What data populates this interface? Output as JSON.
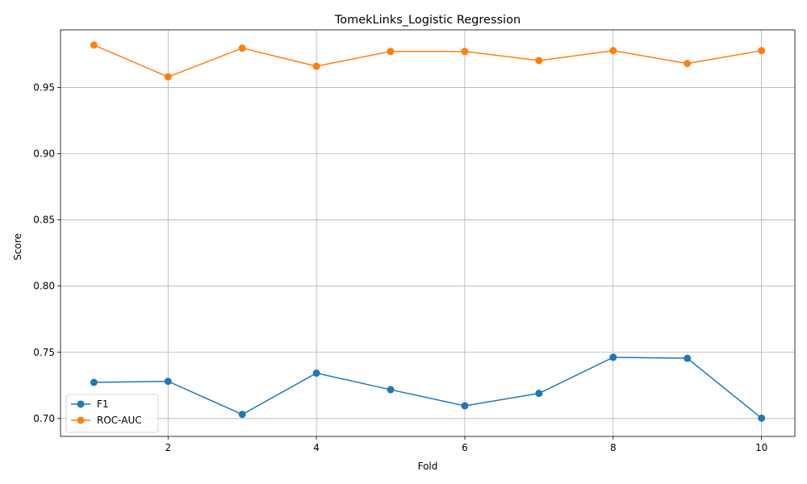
{
  "chart_data": {
    "type": "line",
    "title": "TomekLinks_Logistic Regression",
    "xlabel": "Fold",
    "ylabel": "Score",
    "x": [
      1,
      2,
      3,
      4,
      5,
      6,
      7,
      8,
      9,
      10
    ],
    "xlim": [
      0.55,
      10.45
    ],
    "ylim": [
      0.6865,
      0.9935
    ],
    "xticks": [
      2,
      4,
      6,
      8,
      10
    ],
    "yticks": [
      0.7,
      0.75,
      0.8,
      0.85,
      0.9,
      0.95
    ],
    "ytick_labels": [
      "0.70",
      "0.75",
      "0.80",
      "0.85",
      "0.90",
      "0.95"
    ],
    "grid": true,
    "legend_position": "lower-left",
    "series": [
      {
        "name": "F1",
        "color": "#1f77b4",
        "marker": "circle",
        "values": [
          0.7273,
          0.7281,
          0.7031,
          0.7343,
          0.7218,
          0.7096,
          0.719,
          0.7462,
          0.7455,
          0.7003
        ]
      },
      {
        "name": "ROC-AUC",
        "color": "#ff7f0e",
        "marker": "circle",
        "values": [
          0.982,
          0.958,
          0.9797,
          0.966,
          0.9772,
          0.9772,
          0.9703,
          0.9778,
          0.9681,
          0.9778
        ]
      }
    ]
  }
}
